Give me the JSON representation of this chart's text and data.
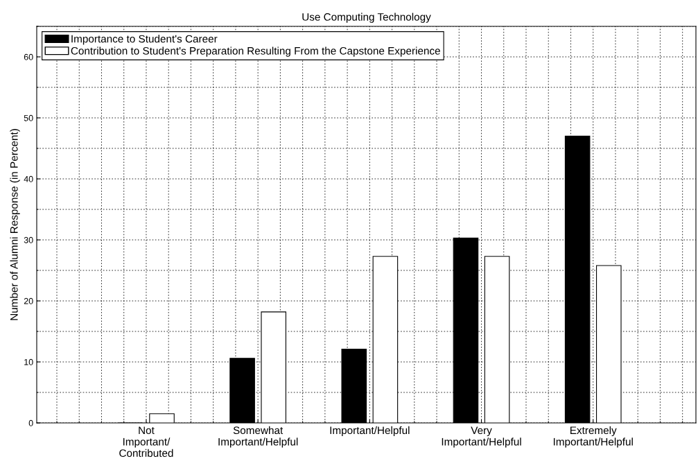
{
  "chart_data": {
    "type": "bar",
    "title": "Use Computing Technology",
    "ylabel": "Number of Alumni Response (in Percent)",
    "categories": [
      "Not\nImportant/\nContributed",
      "Somewhat\nImportant/Helpful",
      "Important/Helpful",
      "Very\nImportant/Helpful",
      "Extremely\nImportant/Helpful"
    ],
    "series": [
      {
        "name": "Importance to Student's Career",
        "color": "#000000",
        "values": [
          0,
          10.6,
          12.1,
          30.3,
          47.0
        ]
      },
      {
        "name": "Contribution to Student's Preparation Resulting From the Capstone Experience",
        "color": "#ffffff",
        "values": [
          1.5,
          18.2,
          27.3,
          27.3,
          25.8
        ]
      }
    ],
    "ylim": [
      0,
      65
    ],
    "yticks": [
      0,
      10,
      20,
      30,
      40,
      50,
      60
    ],
    "grid": true,
    "legend": "top left"
  }
}
